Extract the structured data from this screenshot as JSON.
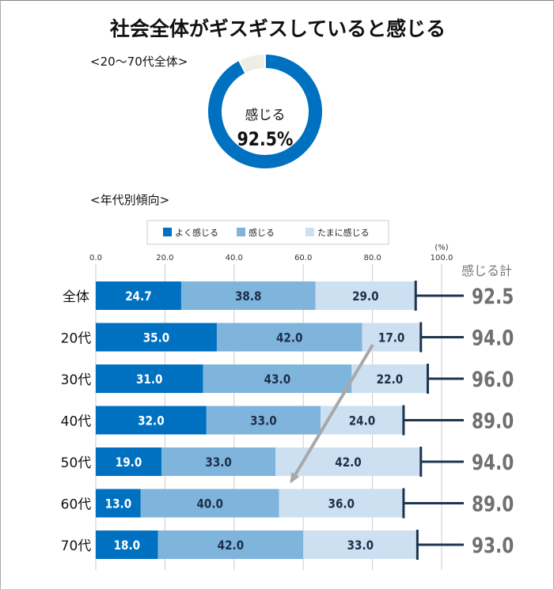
{
  "title": "社会全体がギスギスしていると感じる",
  "donut_section_label": "<20～70代全体>",
  "bar_section_label": "<年代別傾向>",
  "chart_data": [
    {
      "type": "pie",
      "variant": "donut",
      "center_label": "感じる",
      "center_value": "92.5%",
      "values": [
        92.5,
        7.5
      ],
      "colors": [
        "#0070c0",
        "#eeede6"
      ]
    },
    {
      "type": "bar",
      "orientation": "horizontal",
      "stacked": true,
      "categories": [
        "全体",
        "20代",
        "30代",
        "40代",
        "50代",
        "60代",
        "70代"
      ],
      "series": [
        {
          "name": "よく感じる",
          "color": "#0070c0",
          "values": [
            24.7,
            35.0,
            31.0,
            32.0,
            19.0,
            13.0,
            18.0
          ]
        },
        {
          "name": "感じる",
          "color": "#7fb4dc",
          "values": [
            38.8,
            42.0,
            43.0,
            33.0,
            33.0,
            40.0,
            42.0
          ]
        },
        {
          "name": "たまに感じる",
          "color": "#cde0f1",
          "values": [
            29.0,
            17.0,
            22.0,
            24.0,
            42.0,
            36.0,
            33.0
          ]
        }
      ],
      "totals_label": "感じる計",
      "totals": [
        "92.5",
        "94.0",
        "96.0",
        "89.0",
        "94.0",
        "89.0",
        "93.0"
      ],
      "xlim": [
        0,
        100
      ],
      "xticks": [
        "0.0",
        "20.0",
        "40.0",
        "60.0",
        "80.0",
        "100.0"
      ],
      "unit": "(%)",
      "grid": true,
      "legend": "top",
      "annotation": "arrow from 20代 たまに感じる to 60代"
    }
  ]
}
